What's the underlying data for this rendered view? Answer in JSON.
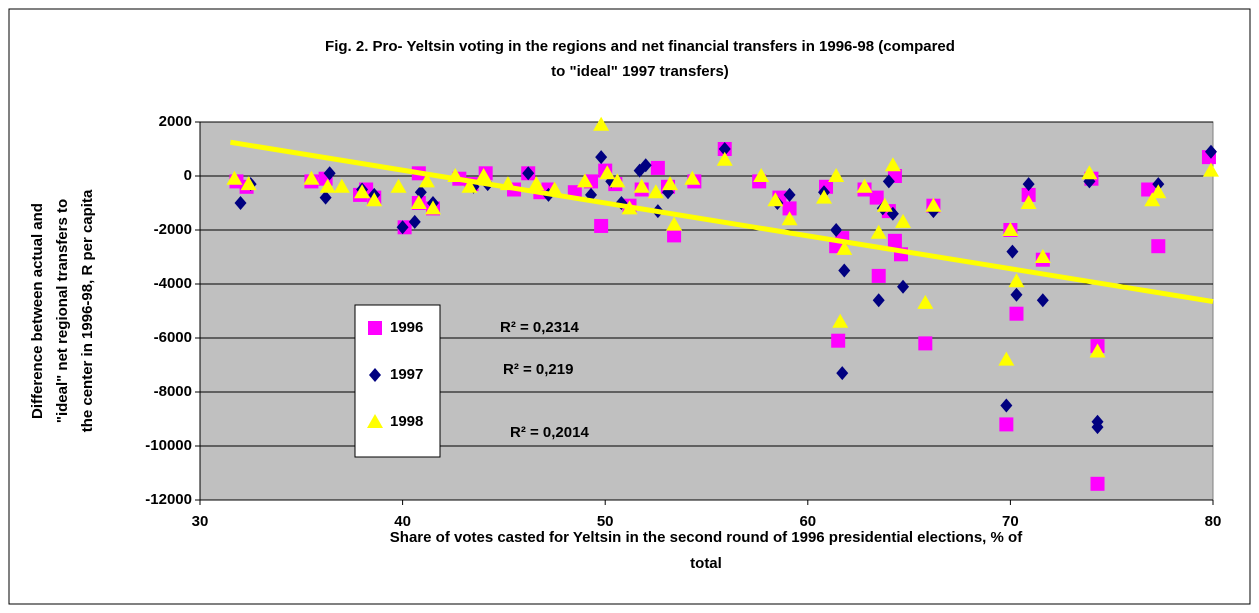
{
  "chart_data": {
    "type": "scatter",
    "title": [
      "Fig. 2. Pro- Yeltsin voting in the regions and net financial transfers in 1996-98 (compared",
      "to \"ideal\" 1997 transfers)"
    ],
    "xlabel": [
      "Share of votes casted for Yeltsin in the second round of 1996 presidential elections, % of",
      "total"
    ],
    "ylabel": [
      "Difference between actual and",
      "\"ideal\"  net regional  transfers to",
      "the center in 1996-98, R per capita"
    ],
    "xlim": [
      30,
      80
    ],
    "ylim": [
      -12000,
      2000
    ],
    "xticks": [
      30,
      40,
      50,
      60,
      70,
      80
    ],
    "yticks": [
      -12000,
      -10000,
      -8000,
      -6000,
      -4000,
      -2000,
      0,
      2000
    ],
    "grid": true,
    "series": [
      {
        "name": "1996",
        "color": "#ff00ff",
        "marker": "square",
        "x": [
          31.8,
          32.3,
          35.5,
          36.2,
          37.9,
          38.2,
          38.6,
          40.1,
          40.8,
          40.8,
          41.5,
          42.8,
          43.4,
          44.1,
          45.5,
          46.2,
          46.8,
          47.2,
          48.5,
          49.3,
          49.8,
          50.0,
          50.5,
          51.2,
          51.8,
          52.6,
          53.1,
          53.4,
          54.4,
          55.9,
          57.6,
          58.6,
          59.1,
          60.9,
          61.4,
          61.5,
          61.7,
          62.8,
          63.4,
          63.5,
          64.0,
          64.3,
          64.3,
          64.6,
          65.8,
          66.2,
          69.8,
          70.0,
          70.3,
          70.9,
          71.6,
          74.0,
          74.3,
          74.3,
          76.8,
          77.3,
          79.8
        ],
        "values": [
          -200,
          -400,
          -200,
          -100,
          -700,
          -500,
          -800,
          -1900,
          100,
          -1000,
          -1200,
          -100,
          -300,
          100,
          -500,
          100,
          -600,
          -500,
          -600,
          -200,
          -1850,
          200,
          -300,
          -1100,
          -500,
          300,
          -400,
          -2200,
          -200,
          1000,
          -200,
          -800,
          -1200,
          -400,
          -2600,
          -6100,
          -2300,
          -500,
          -800,
          -3700,
          -1300,
          0,
          -2400,
          -2900,
          -6200,
          -1100,
          -9200,
          -2000,
          -5100,
          -700,
          -3100,
          -100,
          -6300,
          -11400,
          -500,
          -2600,
          700
        ]
      },
      {
        "name": "1997",
        "color": "#000080",
        "marker": "diamond",
        "x": [
          32.0,
          32.5,
          36.2,
          36.4,
          38.0,
          38.6,
          40.0,
          40.6,
          40.9,
          41.5,
          43.5,
          44.2,
          46.2,
          47.2,
          49.3,
          49.8,
          50.3,
          50.8,
          51.7,
          52.0,
          52.6,
          53.1,
          55.9,
          58.5,
          59.1,
          60.8,
          61.4,
          61.7,
          61.8,
          63.5,
          63.7,
          64.0,
          64.2,
          64.7,
          66.2,
          69.8,
          70.1,
          70.3,
          70.9,
          71.6,
          73.9,
          74.3,
          74.3,
          77.3,
          79.9
        ],
        "values": [
          -1000,
          -300,
          -800,
          100,
          -500,
          -700,
          -1900,
          -1700,
          -600,
          -1000,
          -400,
          -300,
          100,
          -700,
          -700,
          700,
          -200,
          -1000,
          200,
          400,
          -1300,
          -600,
          1000,
          -1000,
          -700,
          -600,
          -2000,
          -7300,
          -3500,
          -4600,
          -1200,
          -200,
          -1400,
          -4100,
          -1300,
          -8500,
          -2800,
          -4400,
          -300,
          -4600,
          -200,
          -9100,
          -9300,
          -300,
          900
        ]
      },
      {
        "name": "1998",
        "color": "#ffff00",
        "marker": "triangle",
        "x": [
          31.7,
          32.4,
          35.5,
          36.3,
          37.0,
          38.0,
          38.6,
          39.8,
          40.8,
          41.2,
          41.5,
          42.6,
          43.3,
          44.0,
          45.2,
          46.6,
          47.5,
          49.0,
          49.8,
          50.1,
          50.6,
          51.2,
          51.8,
          52.5,
          53.2,
          53.4,
          54.3,
          55.9,
          57.7,
          58.4,
          59.1,
          60.8,
          61.4,
          61.6,
          61.8,
          62.8,
          63.5,
          63.8,
          64.2,
          64.7,
          65.8,
          66.2,
          69.8,
          70.0,
          70.3,
          70.9,
          71.6,
          73.9,
          74.3,
          77.0,
          77.3,
          79.9
        ],
        "values": [
          -100,
          -300,
          -100,
          -400,
          -400,
          -600,
          -900,
          -400,
          -1000,
          -200,
          -1200,
          0,
          -400,
          0,
          -300,
          -300,
          -500,
          -200,
          1900,
          100,
          -200,
          -1200,
          -400,
          -600,
          -300,
          -1800,
          -100,
          600,
          0,
          -900,
          -1600,
          -800,
          0,
          -5400,
          -2700,
          -400,
          -2100,
          -1100,
          400,
          -1700,
          -4700,
          -1100,
          -6800,
          -2000,
          -3900,
          -1000,
          -3000,
          100,
          -6500,
          -900,
          -600,
          200
        ]
      }
    ],
    "trendline": {
      "color": "#ffff00",
      "x": [
        31.5,
        80
      ],
      "values": [
        1250,
        -4650
      ]
    },
    "annotations": [
      "R² = 0,2314",
      "R² = 0,219",
      "R² = 0,2014"
    ]
  }
}
